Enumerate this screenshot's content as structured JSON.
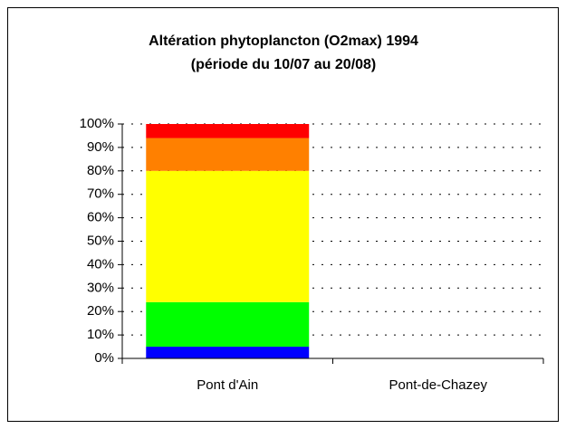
{
  "chart_data": {
    "type": "stacked_bar",
    "title": "Altération phytoplancton (O2max) 1994",
    "subtitle": "(période du 10/07 au 20/08)",
    "categories": [
      "Pont d'Ain",
      "Pont-de-Chazey"
    ],
    "series": [
      {
        "color": "#0000ff",
        "values": [
          5,
          null
        ]
      },
      {
        "color": "#00ff00",
        "values": [
          19,
          null
        ]
      },
      {
        "color": "#ffff00",
        "values": [
          56,
          null
        ]
      },
      {
        "color": "#ff8000",
        "values": [
          14,
          null
        ]
      },
      {
        "color": "#ff0000",
        "values": [
          6,
          null
        ]
      }
    ],
    "ylim": [
      0,
      100
    ],
    "yticks": [
      {
        "value": 0,
        "label": "0%"
      },
      {
        "value": 10,
        "label": "10%"
      },
      {
        "value": 20,
        "label": "20%"
      },
      {
        "value": 30,
        "label": "30%"
      },
      {
        "value": 40,
        "label": "40%"
      },
      {
        "value": 50,
        "label": "50%"
      },
      {
        "value": 60,
        "label": "60%"
      },
      {
        "value": 70,
        "label": "70%"
      },
      {
        "value": 80,
        "label": "80%"
      },
      {
        "value": 90,
        "label": "90%"
      },
      {
        "value": 100,
        "label": "100%"
      }
    ],
    "grid": true
  }
}
